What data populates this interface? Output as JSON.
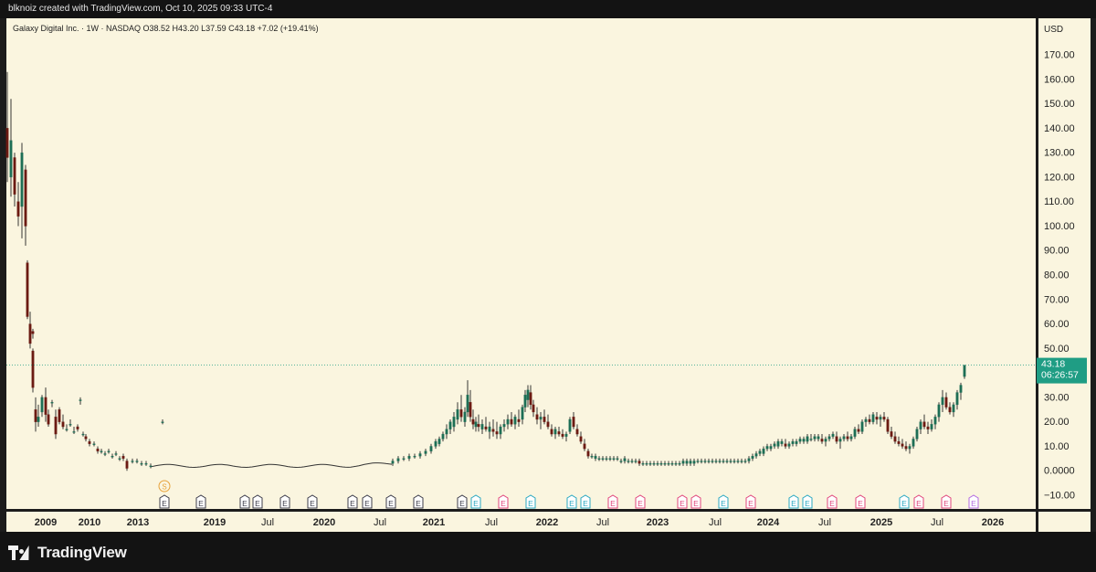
{
  "topbar": {
    "text": "blknoiz created with TradingView.com, Oct 10, 2025 09:33 UTC-4"
  },
  "legend": {
    "text": "Galaxy Digital Inc. · 1W · NASDAQ  O38.52  H43.20  L37.59  C43.18  +7.02 (+19.41%)"
  },
  "footer": {
    "brand": "TradingView"
  },
  "colors": {
    "background": "#faf5df",
    "up": "#1d6e55",
    "down": "#6b1a12",
    "price_tag": "#1f9d84",
    "frame": "#1c1c1c"
  },
  "chart_data": {
    "type": "candlestick",
    "symbol": "Galaxy Digital Inc.",
    "interval": "1W",
    "exchange": "NASDAQ",
    "currency": "USD",
    "ylim": [
      -13,
      177
    ],
    "y_ticks": [
      "170.00",
      "160.00",
      "150.00",
      "140.00",
      "130.00",
      "120.00",
      "110.00",
      "100.00",
      "90.00",
      "80.00",
      "70.00",
      "60.00",
      "50.00",
      "40.00",
      "30.00",
      "20.00",
      "10.00",
      "0.0000",
      "−10.00"
    ],
    "x_ticks": [
      "2009",
      "2010",
      "2013",
      "2019",
      "Jul",
      "2020",
      "Jul",
      "2021",
      "Jul",
      "2022",
      "Jul",
      "2023",
      "Jul",
      "2024",
      "Jul",
      "2025",
      "Jul",
      "2026"
    ],
    "x_tick_positions": [
      50,
      98,
      151,
      235,
      293,
      355,
      416,
      475,
      538,
      599,
      660,
      720,
      783,
      841,
      903,
      965,
      1026,
      1087
    ],
    "last_price": {
      "value": "43.18",
      "countdown": "06:26:57"
    },
    "ohlc": {
      "open": 38.52,
      "high": 43.2,
      "low": 37.59,
      "close": 43.18,
      "change": 7.02,
      "change_pct": 19.41
    },
    "events": {
      "split": {
        "label": "S",
        "color": "#e8a23a",
        "position": 180
      },
      "earnings_label": "E",
      "earnings": [
        {
          "p": 180,
          "c": "#3c3c4a"
        },
        {
          "p": 220,
          "c": "#3c3c4a"
        },
        {
          "p": 268,
          "c": "#3c3c4a"
        },
        {
          "p": 282,
          "c": "#3c3c4a"
        },
        {
          "p": 312,
          "c": "#3c3c4a"
        },
        {
          "p": 342,
          "c": "#3c3c4a"
        },
        {
          "p": 386,
          "c": "#3c3c4a"
        },
        {
          "p": 402,
          "c": "#3c3c4a"
        },
        {
          "p": 428,
          "c": "#3c3c4a"
        },
        {
          "p": 458,
          "c": "#3c3c4a"
        },
        {
          "p": 506,
          "c": "#3c3c4a"
        },
        {
          "p": 521,
          "c": "#2aa8c0"
        },
        {
          "p": 551,
          "c": "#e0457b"
        },
        {
          "p": 581,
          "c": "#2aa8c0"
        },
        {
          "p": 626,
          "c": "#2aa8c0"
        },
        {
          "p": 641,
          "c": "#2aa8c0"
        },
        {
          "p": 671,
          "c": "#e0457b"
        },
        {
          "p": 701,
          "c": "#e0457b"
        },
        {
          "p": 747,
          "c": "#e0457b"
        },
        {
          "p": 762,
          "c": "#e0457b"
        },
        {
          "p": 792,
          "c": "#2aa8c0"
        },
        {
          "p": 822,
          "c": "#e0457b"
        },
        {
          "p": 869,
          "c": "#2aa8c0"
        },
        {
          "p": 884,
          "c": "#2aa8c0"
        },
        {
          "p": 911,
          "c": "#e0457b"
        },
        {
          "p": 942,
          "c": "#e0457b"
        },
        {
          "p": 990,
          "c": "#2aa8c0"
        },
        {
          "p": 1006,
          "c": "#e0457b"
        },
        {
          "p": 1036,
          "c": "#e0457b"
        },
        {
          "p": 1066,
          "c": "#b36be0"
        }
      ]
    },
    "candles": [
      [
        8,
        140,
        163,
        118,
        128
      ],
      [
        12,
        120,
        152,
        112,
        135
      ],
      [
        16,
        128,
        130,
        108,
        113
      ],
      [
        20,
        110,
        118,
        100,
        104
      ],
      [
        24,
        108,
        134,
        95,
        130
      ],
      [
        28,
        123,
        125,
        92,
        100
      ],
      [
        30,
        85,
        86,
        62,
        63
      ],
      [
        33,
        60,
        65,
        50,
        52
      ],
      [
        36,
        57,
        58,
        54,
        56
      ],
      [
        36,
        49,
        50,
        32,
        34
      ],
      [
        39,
        25,
        30,
        16,
        20
      ],
      [
        42,
        20,
        27,
        18,
        22
      ],
      [
        46,
        24,
        31,
        22,
        30
      ],
      [
        50,
        30,
        34,
        20,
        23
      ],
      [
        53,
        23,
        25,
        18,
        19
      ],
      [
        57,
        28,
        29,
        26,
        28
      ],
      [
        61,
        22,
        25,
        13,
        15
      ],
      [
        65,
        25,
        26,
        19,
        20
      ],
      [
        69,
        20,
        23,
        17,
        18
      ],
      [
        73,
        17,
        19,
        16,
        17
      ],
      [
        77,
        19,
        21,
        18,
        19
      ],
      [
        81,
        16,
        18,
        15,
        16
      ],
      [
        85,
        18,
        19,
        16,
        17
      ],
      [
        88,
        29,
        30,
        27,
        29
      ],
      [
        91,
        15,
        16,
        14,
        15
      ],
      [
        94,
        14,
        15,
        12,
        13
      ],
      [
        98,
        12,
        13,
        10,
        11
      ],
      [
        103,
        11,
        12,
        10,
        11
      ],
      [
        107,
        9,
        10,
        7,
        8
      ],
      [
        111,
        8,
        9,
        7,
        8
      ],
      [
        115,
        7,
        8,
        6,
        7
      ],
      [
        119,
        8,
        9,
        7,
        8
      ],
      [
        123,
        6,
        7,
        5,
        6
      ],
      [
        127,
        7,
        8,
        6,
        7
      ],
      [
        131,
        5,
        6,
        4,
        5
      ],
      [
        135,
        6,
        7,
        4,
        5
      ],
      [
        139,
        4,
        5,
        0,
        1
      ],
      [
        145,
        4,
        5,
        3,
        4
      ],
      [
        150,
        4,
        5,
        3,
        4
      ],
      [
        155,
        3,
        4,
        2,
        3
      ],
      [
        160,
        3,
        4,
        2,
        3
      ],
      [
        165,
        2,
        3,
        1,
        2
      ],
      [
        178,
        20,
        21,
        19,
        20
      ],
      [
        430,
        3,
        5,
        2,
        4
      ],
      [
        436,
        4,
        6,
        3,
        5
      ],
      [
        442,
        5,
        6,
        4,
        5
      ],
      [
        448,
        5,
        7,
        4,
        6
      ],
      [
        454,
        6,
        7,
        5,
        6
      ],
      [
        460,
        6,
        8,
        5,
        7
      ],
      [
        466,
        7,
        9,
        6,
        8
      ],
      [
        472,
        8,
        11,
        7,
        10
      ],
      [
        477,
        10,
        13,
        9,
        12
      ],
      [
        481,
        11,
        14,
        10,
        13
      ],
      [
        485,
        13,
        16,
        12,
        15
      ],
      [
        489,
        15,
        19,
        13,
        17
      ],
      [
        493,
        17,
        21,
        15,
        20
      ],
      [
        497,
        18,
        24,
        16,
        22
      ],
      [
        501,
        21,
        28,
        19,
        25
      ],
      [
        505,
        25,
        31,
        20,
        22
      ],
      [
        509,
        20,
        26,
        18,
        24
      ],
      [
        512,
        24,
        37,
        22,
        31
      ],
      [
        515,
        28,
        33,
        20,
        22
      ],
      [
        518,
        21,
        25,
        17,
        19
      ],
      [
        521,
        18,
        22,
        16,
        20
      ],
      [
        524,
        19,
        23,
        16,
        18
      ],
      [
        528,
        17,
        21,
        15,
        19
      ],
      [
        532,
        18,
        22,
        16,
        17
      ],
      [
        536,
        16,
        20,
        13,
        18
      ],
      [
        540,
        17,
        21,
        14,
        16
      ],
      [
        544,
        16,
        20,
        13,
        15
      ],
      [
        548,
        15,
        19,
        13,
        18
      ],
      [
        552,
        18,
        21,
        16,
        19
      ],
      [
        556,
        19,
        23,
        17,
        21
      ],
      [
        560,
        21,
        24,
        18,
        19
      ],
      [
        564,
        19,
        23,
        17,
        22
      ],
      [
        568,
        21,
        25,
        18,
        20
      ],
      [
        572,
        21,
        27,
        19,
        26
      ],
      [
        575,
        26,
        33,
        24,
        31
      ],
      [
        578,
        29,
        35,
        26,
        33
      ],
      [
        581,
        32,
        35,
        25,
        27
      ],
      [
        584,
        27,
        29,
        22,
        24
      ],
      [
        588,
        23,
        26,
        19,
        21
      ],
      [
        592,
        21,
        24,
        17,
        22
      ],
      [
        596,
        22,
        25,
        19,
        20
      ],
      [
        600,
        20,
        23,
        17,
        18
      ],
      [
        604,
        17,
        19,
        14,
        15
      ],
      [
        608,
        15,
        18,
        13,
        17
      ],
      [
        612,
        16,
        18,
        14,
        15
      ],
      [
        616,
        15,
        17,
        13,
        14
      ],
      [
        620,
        14,
        16,
        12,
        15
      ],
      [
        624,
        16,
        22,
        15,
        21
      ],
      [
        628,
        22,
        24,
        17,
        18
      ],
      [
        632,
        17,
        19,
        14,
        15
      ],
      [
        636,
        14,
        16,
        11,
        12
      ],
      [
        640,
        11,
        13,
        8,
        9
      ],
      [
        644,
        8,
        9,
        5,
        6
      ],
      [
        648,
        6,
        7,
        5,
        6
      ],
      [
        652,
        5,
        7,
        4,
        6
      ],
      [
        656,
        5,
        6,
        4,
        5
      ],
      [
        660,
        5,
        6,
        4,
        5
      ],
      [
        664,
        5,
        6,
        4,
        5
      ],
      [
        668,
        5,
        6,
        4,
        5
      ],
      [
        672,
        5,
        6,
        4,
        5
      ],
      [
        676,
        5,
        6,
        4,
        5
      ],
      [
        680,
        4,
        5,
        3,
        4
      ],
      [
        684,
        4,
        6,
        3,
        5
      ],
      [
        688,
        4,
        5,
        3,
        4
      ],
      [
        692,
        4,
        5,
        3,
        4
      ],
      [
        696,
        4,
        5,
        3,
        4
      ],
      [
        700,
        4,
        5,
        2,
        3
      ],
      [
        704,
        3,
        4,
        2,
        3
      ],
      [
        708,
        3,
        4,
        2,
        3
      ],
      [
        712,
        3,
        4,
        2,
        3
      ],
      [
        716,
        3,
        4,
        2,
        3
      ],
      [
        720,
        3,
        4,
        2,
        3
      ],
      [
        724,
        3,
        4,
        2,
        3
      ],
      [
        728,
        3,
        4,
        2,
        3
      ],
      [
        732,
        3,
        4,
        2,
        3
      ],
      [
        736,
        3,
        4,
        2,
        3
      ],
      [
        740,
        3,
        4,
        2,
        3
      ],
      [
        744,
        3,
        4,
        2,
        3
      ],
      [
        748,
        3,
        5,
        2,
        4
      ],
      [
        752,
        3,
        5,
        2,
        4
      ],
      [
        756,
        3,
        5,
        2,
        4
      ],
      [
        760,
        3,
        5,
        2,
        4
      ],
      [
        764,
        4,
        5,
        3,
        4
      ],
      [
        768,
        4,
        5,
        3,
        4
      ],
      [
        772,
        4,
        5,
        3,
        4
      ],
      [
        776,
        4,
        5,
        3,
        4
      ],
      [
        780,
        4,
        5,
        3,
        4
      ],
      [
        784,
        4,
        5,
        3,
        4
      ],
      [
        788,
        4,
        5,
        3,
        4
      ],
      [
        792,
        4,
        5,
        3,
        4
      ],
      [
        796,
        4,
        5,
        3,
        4
      ],
      [
        800,
        4,
        5,
        3,
        4
      ],
      [
        804,
        4,
        5,
        3,
        4
      ],
      [
        808,
        4,
        5,
        3,
        4
      ],
      [
        812,
        4,
        5,
        3,
        4
      ],
      [
        816,
        4,
        5,
        3,
        4
      ],
      [
        820,
        4,
        6,
        3,
        5
      ],
      [
        824,
        5,
        7,
        4,
        6
      ],
      [
        828,
        6,
        8,
        5,
        7
      ],
      [
        832,
        7,
        9,
        6,
        8
      ],
      [
        836,
        7,
        10,
        6,
        9
      ],
      [
        840,
        9,
        11,
        8,
        10
      ],
      [
        844,
        9,
        11,
        8,
        10
      ],
      [
        848,
        10,
        12,
        9,
        11
      ],
      [
        852,
        10,
        13,
        9,
        12
      ],
      [
        856,
        11,
        13,
        10,
        12
      ],
      [
        860,
        11,
        13,
        9,
        10
      ],
      [
        864,
        10,
        12,
        9,
        11
      ],
      [
        868,
        11,
        13,
        10,
        12
      ],
      [
        872,
        11,
        13,
        10,
        12
      ],
      [
        876,
        12,
        14,
        11,
        13
      ],
      [
        880,
        12,
        14,
        11,
        13
      ],
      [
        884,
        12,
        15,
        11,
        14
      ],
      [
        888,
        13,
        15,
        12,
        13
      ],
      [
        892,
        13,
        15,
        12,
        14
      ],
      [
        896,
        13,
        15,
        12,
        14
      ],
      [
        900,
        13,
        15,
        11,
        12
      ],
      [
        904,
        12,
        14,
        10,
        13
      ],
      [
        908,
        13,
        15,
        12,
        14
      ],
      [
        912,
        14,
        16,
        13,
        15
      ],
      [
        916,
        14,
        16,
        11,
        12
      ],
      [
        920,
        12,
        14,
        9,
        13
      ],
      [
        924,
        13,
        15,
        12,
        14
      ],
      [
        928,
        14,
        16,
        12,
        13
      ],
      [
        932,
        13,
        15,
        12,
        14
      ],
      [
        936,
        14,
        18,
        13,
        17
      ],
      [
        940,
        17,
        19,
        15,
        16
      ],
      [
        944,
        16,
        21,
        15,
        20
      ],
      [
        948,
        20,
        22,
        18,
        21
      ],
      [
        952,
        21,
        23,
        19,
        20
      ],
      [
        956,
        20,
        24,
        19,
        23
      ],
      [
        960,
        22,
        24,
        19,
        21
      ],
      [
        964,
        21,
        23,
        18,
        22
      ],
      [
        968,
        22,
        24,
        20,
        21
      ],
      [
        972,
        21,
        22,
        15,
        16
      ],
      [
        976,
        16,
        18,
        13,
        14
      ],
      [
        980,
        14,
        16,
        11,
        12
      ],
      [
        984,
        12,
        14,
        10,
        11
      ],
      [
        988,
        11,
        13,
        9,
        10
      ],
      [
        992,
        10,
        12,
        8,
        9
      ],
      [
        996,
        9,
        11,
        7,
        10
      ],
      [
        1000,
        10,
        14,
        9,
        13
      ],
      [
        1004,
        13,
        18,
        12,
        17
      ],
      [
        1008,
        17,
        21,
        15,
        20
      ],
      [
        1012,
        20,
        23,
        17,
        18
      ],
      [
        1016,
        18,
        20,
        15,
        17
      ],
      [
        1020,
        17,
        21,
        16,
        19
      ],
      [
        1024,
        19,
        23,
        17,
        22
      ],
      [
        1028,
        22,
        28,
        20,
        27
      ],
      [
        1032,
        27,
        33,
        24,
        30
      ],
      [
        1036,
        30,
        32,
        25,
        26
      ],
      [
        1040,
        26,
        28,
        23,
        24
      ],
      [
        1044,
        24,
        28,
        22,
        27
      ],
      [
        1048,
        27,
        33,
        25,
        32
      ],
      [
        1052,
        32,
        36,
        29,
        35
      ],
      [
        1056,
        38.52,
        43.2,
        37.59,
        43.18
      ]
    ]
  }
}
